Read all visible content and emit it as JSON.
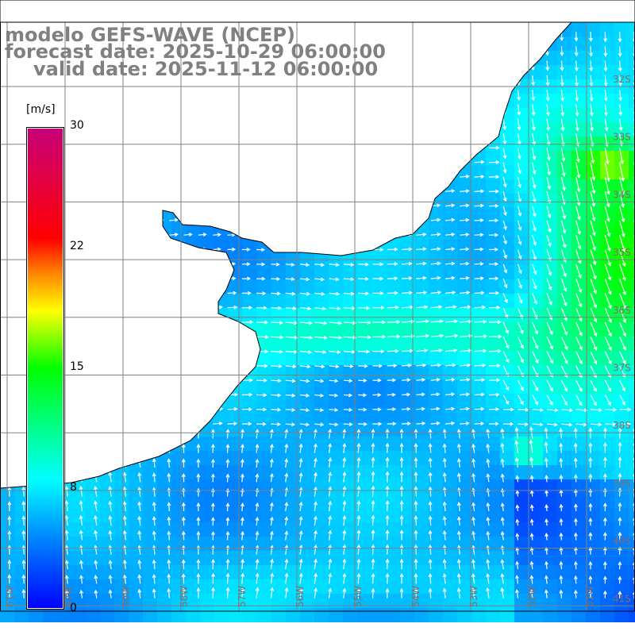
{
  "title": {
    "line1": "modelo GEFS-WAVE (NCEP)",
    "line2": "forecast date: 2025-10-29 06:00:00",
    "line3": "valid date: 2025-11-12 06:00:00"
  },
  "colorbar": {
    "unit": "[m/s]",
    "ticks": [
      "30",
      "22",
      "15",
      "8",
      "0"
    ],
    "range": [
      0,
      30
    ],
    "colors": [
      "#0000ff",
      "#0080ff",
      "#00ffff",
      "#00ff00",
      "#ffff00",
      "#ff8000",
      "#ff0000",
      "#c8007a"
    ]
  },
  "map": {
    "lat_labels": [
      "32S",
      "33S",
      "34S",
      "35S",
      "36S",
      "37S",
      "38S",
      "39S",
      "40S",
      "41S"
    ],
    "lon_labels": [
      "61W",
      "60W",
      "59W",
      "58W",
      "57W",
      "56W",
      "55W",
      "54W",
      "53W",
      "52W",
      "51W"
    ],
    "land_color": "#ffffff",
    "grid_color": "#808080"
  }
}
